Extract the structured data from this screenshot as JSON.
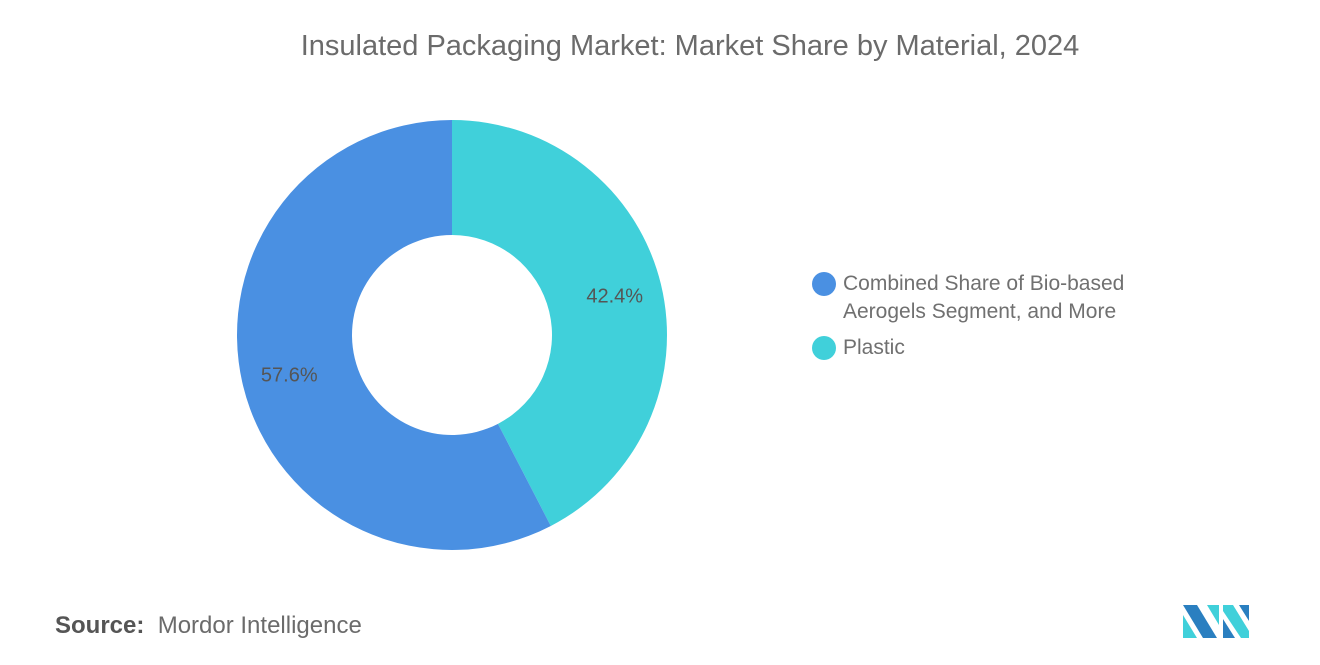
{
  "chart_data": {
    "type": "pie",
    "style": "donut",
    "title": "Insulated Packaging Market: Market Share by Material, 2024",
    "slices": [
      {
        "label": "Plastic",
        "value": 42.4,
        "display": "42.4%",
        "color": "#40D0DA"
      },
      {
        "label": "Combined Share of Bio-based Aerogels Segment, and More",
        "value": 57.6,
        "display": "57.6%",
        "color": "#4A90E2"
      }
    ],
    "legend_placement": "right",
    "legend": [
      {
        "label": "Combined Share of Bio-based Aerogels Segment, and More",
        "color": "#4A90E2"
      },
      {
        "label": "Plastic",
        "color": "#40D0DA"
      }
    ]
  },
  "source": {
    "label": "Source:",
    "value": "Mordor Intelligence"
  },
  "logo": {
    "name": "mordor-intelligence-logo",
    "colors": [
      "#2A7FC0",
      "#40D0DA"
    ]
  }
}
